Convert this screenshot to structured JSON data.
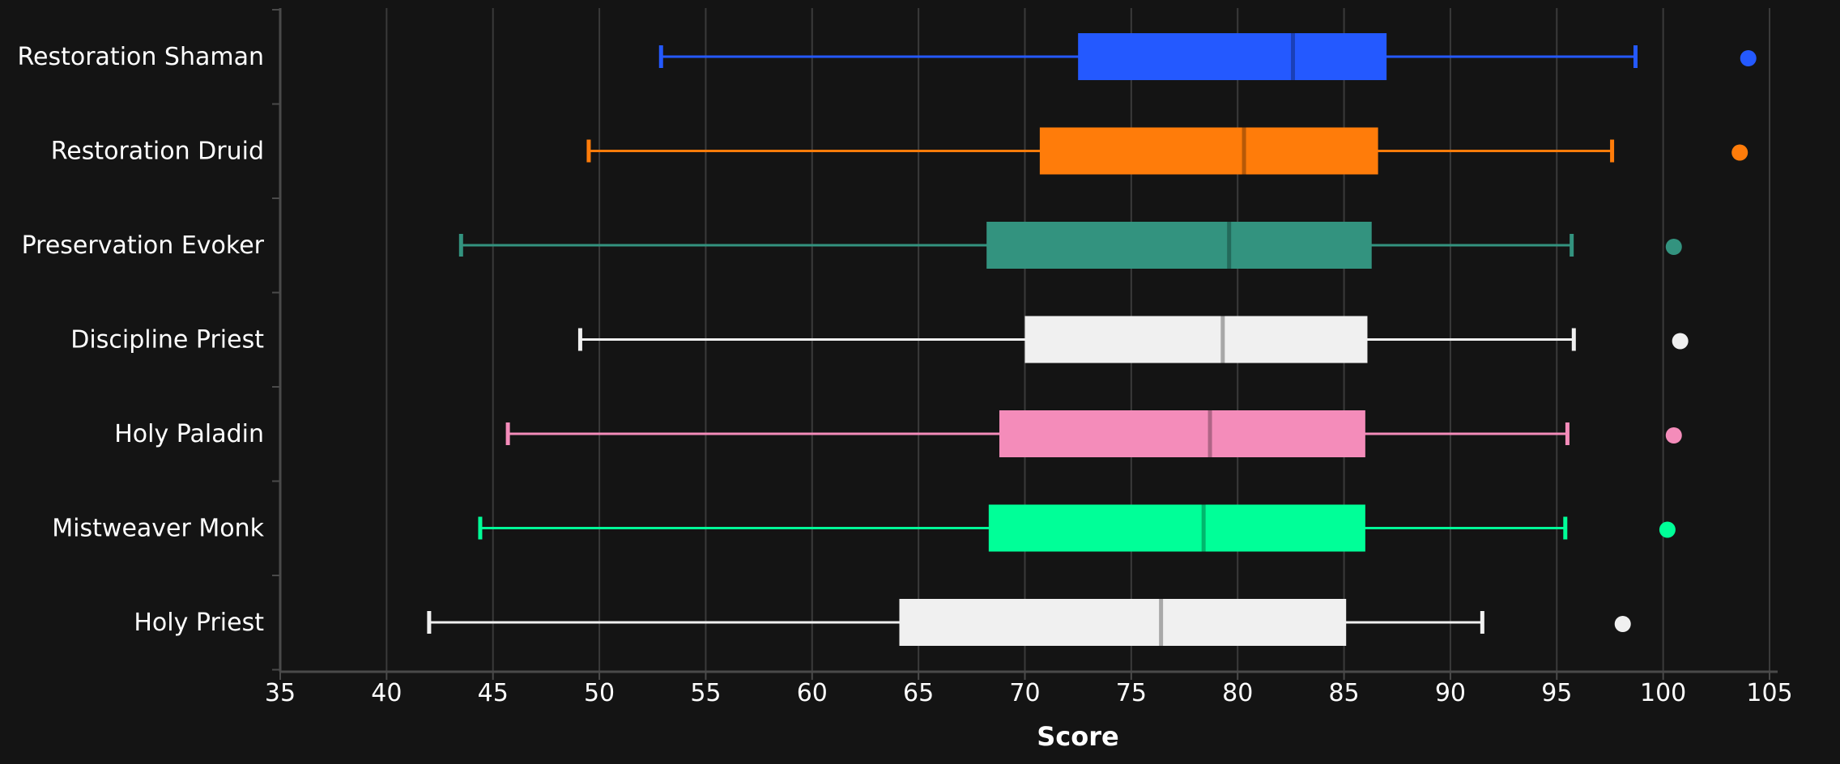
{
  "chart_data": {
    "type": "boxplot",
    "orientation": "horizontal",
    "xlabel": "Score",
    "ylabel": "",
    "xlim": [
      35,
      105
    ],
    "xticks": [
      35,
      40,
      45,
      50,
      55,
      60,
      65,
      70,
      75,
      80,
      85,
      90,
      95,
      100,
      105
    ],
    "grid": "vertical",
    "background": "#141414",
    "series": [
      {
        "name": "Restoration Shaman",
        "color": "#2459ff",
        "whisker_low": 52.9,
        "q1": 72.5,
        "median": 82.6,
        "q3": 87.0,
        "whisker_high": 98.7,
        "outlier": 104.0
      },
      {
        "name": "Restoration Druid",
        "color": "#ff7c0a",
        "whisker_low": 49.5,
        "q1": 70.7,
        "median": 80.3,
        "q3": 86.6,
        "whisker_high": 97.6,
        "outlier": 103.6
      },
      {
        "name": "Preservation Evoker",
        "color": "#33937f",
        "whisker_low": 43.5,
        "q1": 68.2,
        "median": 79.6,
        "q3": 86.3,
        "whisker_high": 95.7,
        "outlier": 100.5
      },
      {
        "name": "Discipline Priest",
        "color": "#f0f0f0",
        "whisker_low": 49.1,
        "q1": 70.0,
        "median": 79.3,
        "q3": 86.1,
        "whisker_high": 95.8,
        "outlier": 100.8
      },
      {
        "name": "Holy Paladin",
        "color": "#f48cba",
        "whisker_low": 45.7,
        "q1": 68.8,
        "median": 78.7,
        "q3": 86.0,
        "whisker_high": 95.5,
        "outlier": 100.5
      },
      {
        "name": "Mistweaver Monk",
        "color": "#00ff98",
        "whisker_low": 44.4,
        "q1": 68.3,
        "median": 78.4,
        "q3": 86.0,
        "whisker_high": 95.4,
        "outlier": 100.2
      },
      {
        "name": "Holy Priest",
        "color": "#f0f0f0",
        "whisker_low": 42.0,
        "q1": 64.1,
        "median": 76.4,
        "q3": 85.1,
        "whisker_high": 91.5,
        "outlier": 98.1
      }
    ]
  }
}
